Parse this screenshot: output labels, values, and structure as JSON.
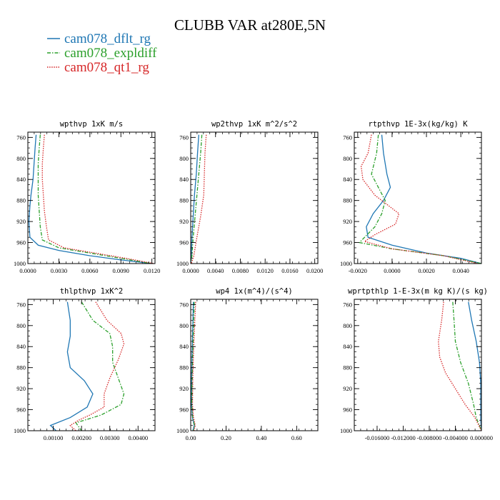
{
  "figure": {
    "title": "CLUBB VAR at280E,5N",
    "legend": [
      {
        "name": "cam078_dflt_rg",
        "color": "#1f77b4",
        "dash": "solid"
      },
      {
        "name": "cam078_expldiff",
        "color": "#2ca02c",
        "dash": "dashdot"
      },
      {
        "name": "cam078_qt1_rg",
        "color": "#d62728",
        "dash": "dotted"
      }
    ]
  },
  "chart_data": [
    {
      "type": "line",
      "title": "wpthvp   1xK m/s",
      "xlim": [
        0,
        0.0123
      ],
      "ylim": [
        1000,
        750
      ],
      "xticks": [
        "0.0000",
        "0.0030",
        "0.0060",
        "0.0090",
        "0.0120"
      ],
      "xtick_values": [
        0,
        0.003,
        0.006,
        0.009,
        0.012
      ],
      "yticks": [
        "760",
        "800",
        "840",
        "880",
        "920",
        "960",
        "1000"
      ],
      "ytick_values": [
        760,
        800,
        840,
        880,
        920,
        960,
        1000
      ],
      "series": [
        {
          "color": "#1f77b4",
          "dash": "solid",
          "points": [
            [
              0.0008,
              755
            ],
            [
              0.0007,
              780
            ],
            [
              0.0006,
              810
            ],
            [
              0.0005,
              840
            ],
            [
              0.0003,
              870
            ],
            [
              0.0002,
              890
            ],
            [
              0.0001,
              920
            ],
            [
              0.0002,
              950
            ],
            [
              0.001,
              965
            ],
            [
              0.003,
              975
            ],
            [
              0.006,
              985
            ],
            [
              0.009,
              993
            ],
            [
              0.012,
              1000
            ]
          ]
        },
        {
          "color": "#2ca02c",
          "dash": "dashdot",
          "points": [
            [
              0.0012,
              755
            ],
            [
              0.0011,
              780
            ],
            [
              0.001,
              810
            ],
            [
              0.001,
              840
            ],
            [
              0.001,
              870
            ],
            [
              0.0011,
              900
            ],
            [
              0.0012,
              930
            ],
            [
              0.0014,
              955
            ],
            [
              0.003,
              970
            ],
            [
              0.006,
              980
            ],
            [
              0.009,
              990
            ],
            [
              0.012,
              1000
            ]
          ]
        },
        {
          "color": "#d62728",
          "dash": "dotted",
          "points": [
            [
              0.0016,
              755
            ],
            [
              0.0015,
              780
            ],
            [
              0.0014,
              810
            ],
            [
              0.0014,
              840
            ],
            [
              0.0015,
              870
            ],
            [
              0.0016,
              900
            ],
            [
              0.0018,
              930
            ],
            [
              0.002,
              955
            ],
            [
              0.0035,
              970
            ],
            [
              0.0065,
              980
            ],
            [
              0.0095,
              990
            ],
            [
              0.0122,
              1000
            ]
          ]
        }
      ]
    },
    {
      "type": "line",
      "title": "wp2thvp   1xK m^2/s^2",
      "xlim": [
        0,
        0.0205
      ],
      "ylim": [
        1000,
        750
      ],
      "xticks": [
        "0.0000",
        "0.0040",
        "0.0080",
        "0.0120",
        "0.0160",
        "0.0200"
      ],
      "xtick_values": [
        0,
        0.004,
        0.008,
        0.012,
        0.016,
        0.02
      ],
      "yticks": [
        "760",
        "800",
        "840",
        "880",
        "920",
        "960",
        "1000"
      ],
      "ytick_values": [
        760,
        800,
        840,
        880,
        920,
        960,
        1000
      ],
      "series": [
        {
          "color": "#1f77b4",
          "dash": "solid",
          "points": [
            [
              0.0013,
              755
            ],
            [
              0.0011,
              790
            ],
            [
              0.0009,
              830
            ],
            [
              0.0006,
              870
            ],
            [
              0.0004,
              910
            ],
            [
              0.0002,
              950
            ],
            [
              0.0001,
              985
            ],
            [
              0.0,
              1000
            ]
          ]
        },
        {
          "color": "#2ca02c",
          "dash": "dashdot",
          "points": [
            [
              0.0018,
              755
            ],
            [
              0.0016,
              790
            ],
            [
              0.0013,
              830
            ],
            [
              0.001,
              870
            ],
            [
              0.0007,
              910
            ],
            [
              0.0004,
              950
            ],
            [
              0.0002,
              985
            ],
            [
              0.0,
              1000
            ]
          ]
        },
        {
          "color": "#d62728",
          "dash": "dotted",
          "points": [
            [
              0.0025,
              755
            ],
            [
              0.0023,
              790
            ],
            [
              0.0022,
              830
            ],
            [
              0.0021,
              870
            ],
            [
              0.0016,
              910
            ],
            [
              0.001,
              950
            ],
            [
              0.0005,
              985
            ],
            [
              0.0001,
              1000
            ]
          ]
        }
      ]
    },
    {
      "type": "line",
      "title": "rtpthvp   1E-3x(kg/kg) K",
      "xlim": [
        -0.0022,
        0.0052
      ],
      "ylim": [
        1000,
        750
      ],
      "xticks": [
        "-0.0020",
        "0.0000",
        "0.0020",
        "0.0040"
      ],
      "xtick_values": [
        -0.002,
        0,
        0.002,
        0.004
      ],
      "yticks": [
        "760",
        "800",
        "840",
        "880",
        "920",
        "960",
        "1000"
      ],
      "ytick_values": [
        760,
        800,
        840,
        880,
        920,
        960,
        1000
      ],
      "series": [
        {
          "color": "#1f77b4",
          "dash": "solid",
          "points": [
            [
              -0.0006,
              755
            ],
            [
              -0.0005,
              790
            ],
            [
              -0.0003,
              830
            ],
            [
              -0.0001,
              855
            ],
            [
              -0.0005,
              880
            ],
            [
              -0.0011,
              905
            ],
            [
              -0.0015,
              930
            ],
            [
              -0.0014,
              950
            ],
            [
              0.0,
              965
            ],
            [
              0.002,
              980
            ],
            [
              0.004,
              990
            ],
            [
              0.0052,
              1000
            ]
          ]
        },
        {
          "color": "#2ca02c",
          "dash": "dashdot",
          "points": [
            [
              -0.0008,
              755
            ],
            [
              -0.0009,
              790
            ],
            [
              -0.0012,
              830
            ],
            [
              -0.0008,
              855
            ],
            [
              -0.0004,
              880
            ],
            [
              -0.0006,
              905
            ],
            [
              -0.001,
              930
            ],
            [
              -0.0016,
              950
            ],
            [
              -0.0019,
              960
            ],
            [
              0.0,
              972
            ],
            [
              0.003,
              985
            ],
            [
              0.0052,
              1000
            ]
          ]
        },
        {
          "color": "#d62728",
          "dash": "dotted",
          "points": [
            [
              -0.0012,
              755
            ],
            [
              -0.0014,
              790
            ],
            [
              -0.0018,
              815
            ],
            [
              -0.0017,
              840
            ],
            [
              -0.001,
              870
            ],
            [
              -0.0002,
              890
            ],
            [
              0.0004,
              905
            ],
            [
              0.0002,
              925
            ],
            [
              -0.001,
              945
            ],
            [
              -0.0016,
              958
            ],
            [
              0.0,
              972
            ],
            [
              0.003,
              985
            ],
            [
              0.005,
              1000
            ]
          ]
        }
      ]
    },
    {
      "type": "line",
      "title": "thlpthvp   1xK^2",
      "xlim": [
        0.0001,
        0.0046
      ],
      "ylim": [
        1000,
        750
      ],
      "xticks": [
        "0.00100",
        "0.00200",
        "0.00300",
        "0.00400"
      ],
      "xtick_values": [
        0.001,
        0.002,
        0.003,
        0.004
      ],
      "yticks": [
        "760",
        "800",
        "840",
        "880",
        "920",
        "960",
        "1000"
      ],
      "ytick_values": [
        760,
        800,
        840,
        880,
        920,
        960,
        1000
      ],
      "series": [
        {
          "color": "#1f77b4",
          "dash": "solid",
          "points": [
            [
              0.0015,
              755
            ],
            [
              0.0016,
              790
            ],
            [
              0.0016,
              820
            ],
            [
              0.0015,
              850
            ],
            [
              0.0016,
              880
            ],
            [
              0.0021,
              905
            ],
            [
              0.0024,
              930
            ],
            [
              0.0022,
              955
            ],
            [
              0.0016,
              975
            ],
            [
              0.0009,
              990
            ],
            [
              0.0011,
              1000
            ]
          ]
        },
        {
          "color": "#2ca02c",
          "dash": "dashdot",
          "points": [
            [
              0.002,
              755
            ],
            [
              0.0024,
              790
            ],
            [
              0.003,
              815
            ],
            [
              0.0031,
              840
            ],
            [
              0.0031,
              870
            ],
            [
              0.0033,
              900
            ],
            [
              0.0035,
              930
            ],
            [
              0.0034,
              950
            ],
            [
              0.0027,
              970
            ],
            [
              0.0018,
              985
            ],
            [
              0.002,
              1000
            ]
          ]
        },
        {
          "color": "#d62728",
          "dash": "dotted",
          "points": [
            [
              0.0025,
              755
            ],
            [
              0.0029,
              790
            ],
            [
              0.0034,
              815
            ],
            [
              0.0035,
              835
            ],
            [
              0.0033,
              865
            ],
            [
              0.003,
              900
            ],
            [
              0.0028,
              930
            ],
            [
              0.0028,
              955
            ],
            [
              0.0023,
              970
            ],
            [
              0.0019,
              980
            ],
            [
              0.0016,
              990
            ],
            [
              0.0018,
              1000
            ]
          ]
        }
      ]
    },
    {
      "type": "line",
      "title": "wp4   1x(m^4)/(s^4)",
      "xlim": [
        0,
        0.72
      ],
      "ylim": [
        1000,
        750
      ],
      "xticks": [
        "0.00",
        "0.20",
        "0.40",
        "0.60"
      ],
      "xtick_values": [
        0,
        0.2,
        0.4,
        0.6
      ],
      "yticks": [
        "760",
        "800",
        "840",
        "880",
        "920",
        "960",
        "1000"
      ],
      "ytick_values": [
        760,
        800,
        840,
        880,
        920,
        960,
        1000
      ],
      "series": [
        {
          "color": "#1f77b4",
          "dash": "solid",
          "points": [
            [
              0.015,
              755
            ],
            [
              0.012,
              800
            ],
            [
              0.008,
              850
            ],
            [
              0.005,
              900
            ],
            [
              0.004,
              950
            ],
            [
              0.01,
              975
            ],
            [
              0.02,
              990
            ],
            [
              0.012,
              1000
            ]
          ]
        },
        {
          "color": "#2ca02c",
          "dash": "dashdot",
          "points": [
            [
              0.02,
              755
            ],
            [
              0.016,
              800
            ],
            [
              0.012,
              850
            ],
            [
              0.008,
              900
            ],
            [
              0.006,
              950
            ],
            [
              0.012,
              975
            ],
            [
              0.022,
              990
            ],
            [
              0.015,
              1000
            ]
          ]
        },
        {
          "color": "#d62728",
          "dash": "dotted",
          "points": [
            [
              0.028,
              755
            ],
            [
              0.022,
              800
            ],
            [
              0.016,
              850
            ],
            [
              0.012,
              900
            ],
            [
              0.01,
              950
            ],
            [
              0.016,
              975
            ],
            [
              0.026,
              990
            ],
            [
              0.018,
              1000
            ]
          ]
        }
      ]
    },
    {
      "type": "line",
      "title": "wprtpthlp   1-E-3x(m kg K)/(s kg)",
      "xlim": [
        -0.0195,
        0.0
      ],
      "ylim": [
        1000,
        750
      ],
      "xticks": [
        "-0.016000",
        "-0.012000",
        "-0.008000",
        "-0.004000",
        "0.000000"
      ],
      "xtick_values": [
        -0.016,
        -0.012,
        -0.008,
        -0.004,
        0.0
      ],
      "yticks": [
        "760",
        "800",
        "840",
        "880",
        "920",
        "960",
        "1000"
      ],
      "ytick_values": [
        760,
        800,
        840,
        880,
        920,
        960,
        1000
      ],
      "series": [
        {
          "color": "#1f77b4",
          "dash": "solid",
          "points": [
            [
              -0.002,
              755
            ],
            [
              -0.0015,
              790
            ],
            [
              -0.0008,
              830
            ],
            [
              -0.0003,
              870
            ],
            [
              -0.0001,
              910
            ],
            [
              -0.0001,
              950
            ],
            [
              -0.0001,
              980
            ],
            [
              0.0,
              1000
            ]
          ]
        },
        {
          "color": "#2ca02c",
          "dash": "dashdot",
          "points": [
            [
              -0.0044,
              755
            ],
            [
              -0.0042,
              790
            ],
            [
              -0.004,
              830
            ],
            [
              -0.0032,
              870
            ],
            [
              -0.002,
              910
            ],
            [
              -0.0012,
              950
            ],
            [
              -0.0008,
              975
            ],
            [
              0.0,
              1000
            ]
          ]
        },
        {
          "color": "#d62728",
          "dash": "dotted",
          "points": [
            [
              -0.0058,
              755
            ],
            [
              -0.0061,
              790
            ],
            [
              -0.0066,
              830
            ],
            [
              -0.0064,
              860
            ],
            [
              -0.0055,
              890
            ],
            [
              -0.004,
              920
            ],
            [
              -0.0025,
              950
            ],
            [
              -0.001,
              975
            ],
            [
              0.0,
              1000
            ]
          ]
        }
      ]
    }
  ]
}
